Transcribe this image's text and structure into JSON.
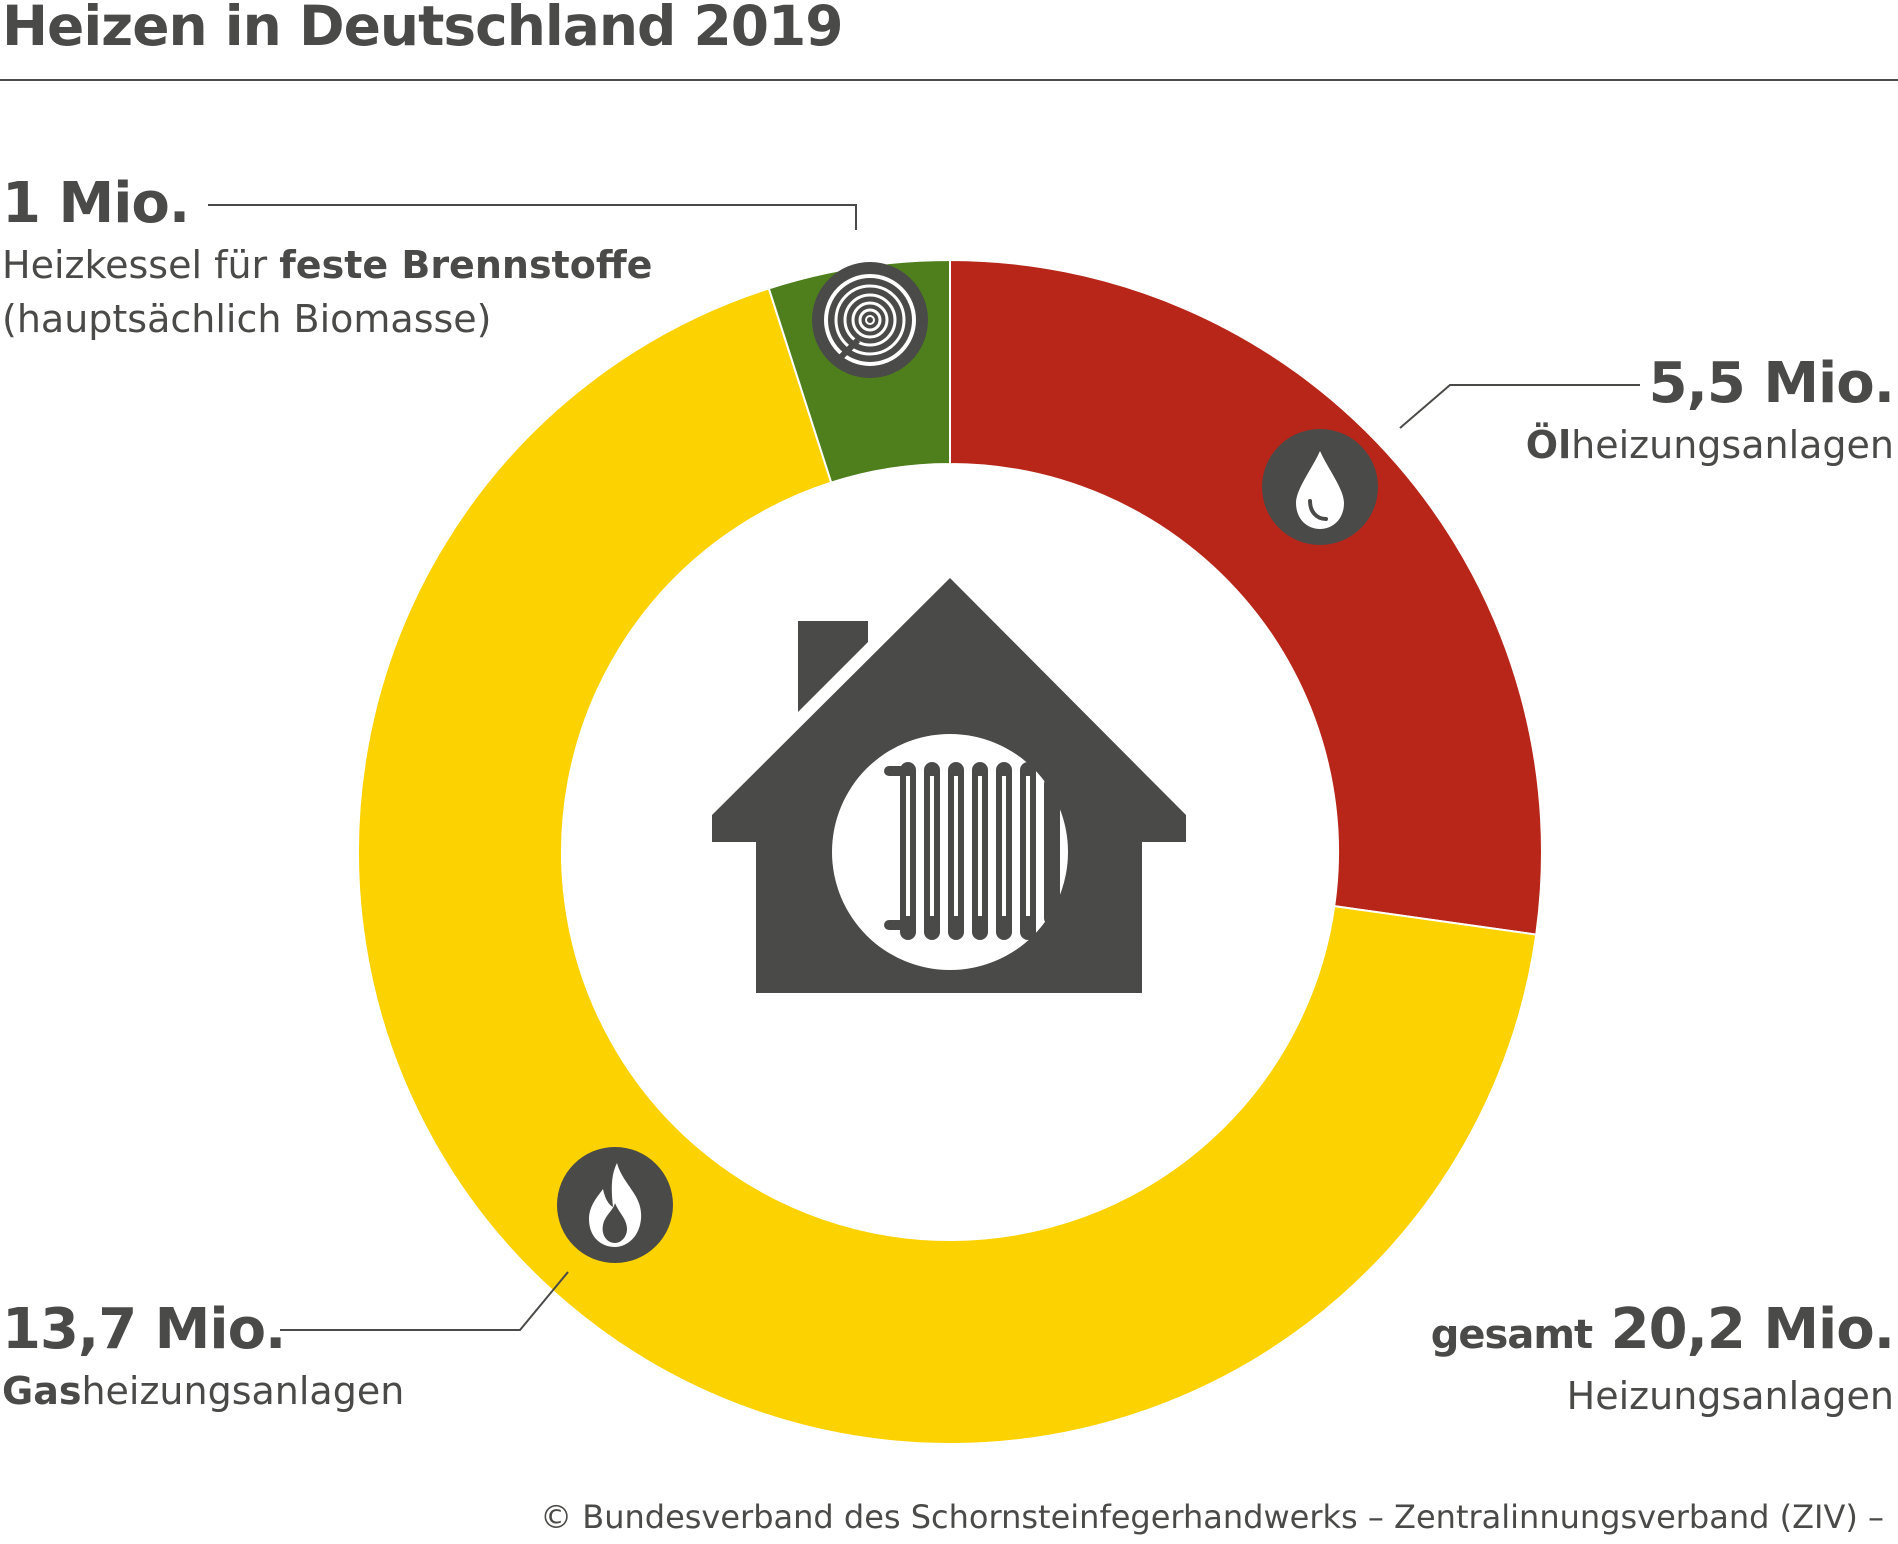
{
  "title": "Heizen in Deutschland 2019",
  "chart_data": {
    "type": "pie",
    "unit": "Mio.",
    "slices": [
      {
        "value": 5.5,
        "value_label": "5,5 Mio.",
        "label_bold": "Öl",
        "label_rest": "heizungsanlagen",
        "color": "#b8261a",
        "icon": "oil-drop-icon"
      },
      {
        "value": 13.7,
        "value_label": "13,7 Mio.",
        "label_bold": "Gas",
        "label_rest": "heizungsanlagen",
        "color": "#fcd200",
        "icon": "gas-flame-icon"
      },
      {
        "value": 1.0,
        "value_label": "1 Mio.",
        "label_pre": "Heizkessel für ",
        "label_bold": "feste Brennstoffe",
        "label_line2": "(hauptsächlich Biomasse)",
        "color": "#4e7f1c",
        "icon": "wood-log-icon"
      }
    ],
    "total": {
      "prefix": "gesamt",
      "value": 20.2,
      "value_label": "20,2 Mio.",
      "label": "Heizungsanlagen"
    },
    "center_icon": "house-radiator-icon"
  },
  "credit": "© Bundesverband des Schornsteinfegerhandwerks – Zentralinnungsverband (ZIV) –"
}
